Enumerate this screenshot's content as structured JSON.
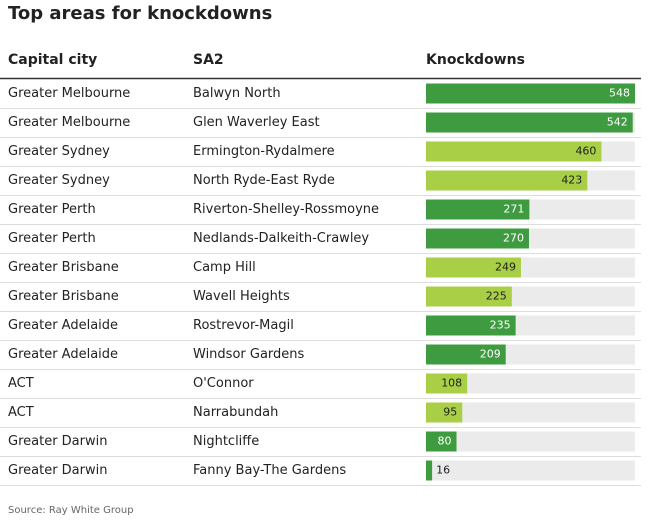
{
  "title": "Top areas for knockdowns",
  "table": {
    "headers": [
      "Capital city",
      "SA2",
      "Knockdowns"
    ],
    "rows": [
      {
        "city": "Greater Melbourne",
        "sa2": "Balwyn North",
        "knockdowns": 548,
        "color": "#3e9b3f"
      },
      {
        "city": "Greater Melbourne",
        "sa2": "Glen Waverley East",
        "knockdowns": 542,
        "color": "#3e9b3f"
      },
      {
        "city": "Greater Sydney",
        "sa2": "Ermington-Rydalmere",
        "knockdowns": 460,
        "color": "#a8cf45"
      },
      {
        "city": "Greater Sydney",
        "sa2": "North Ryde-East Ryde",
        "knockdowns": 423,
        "color": "#a8cf45"
      },
      {
        "city": "Greater Perth",
        "sa2": "Riverton-Shelley-Rossmoyne",
        "knockdowns": 271,
        "color": "#3e9b3f"
      },
      {
        "city": "Greater Perth",
        "sa2": "Nedlands-Dalkeith-Crawley",
        "knockdowns": 270,
        "color": "#3e9b3f"
      },
      {
        "city": "Greater Brisbane",
        "sa2": "Camp Hill",
        "knockdowns": 249,
        "color": "#a8cf45"
      },
      {
        "city": "Greater Brisbane",
        "sa2": "Wavell Heights",
        "knockdowns": 225,
        "color": "#a8cf45"
      },
      {
        "city": "Greater Adelaide",
        "sa2": "Rostrevor-Magil",
        "knockdowns": 235,
        "color": "#3e9b3f"
      },
      {
        "city": "Greater Adelaide",
        "sa2": "Windsor Gardens",
        "knockdowns": 209,
        "color": "#3e9b3f"
      },
      {
        "city": "ACT",
        "sa2": "O'Connor",
        "knockdowns": 108,
        "color": "#a8cf45"
      },
      {
        "city": "ACT",
        "sa2": "Narrabundah",
        "knockdowns": 95,
        "color": "#a8cf45"
      },
      {
        "city": "Greater Darwin",
        "sa2": "Nightcliffe",
        "knockdowns": 80,
        "color": "#3e9b3f"
      },
      {
        "city": "Greater Darwin",
        "sa2": "Fanny Bay-The Gardens",
        "knockdowns": 16,
        "color": "#3e9b3f"
      }
    ]
  },
  "source": "Source: Ray White Group"
}
